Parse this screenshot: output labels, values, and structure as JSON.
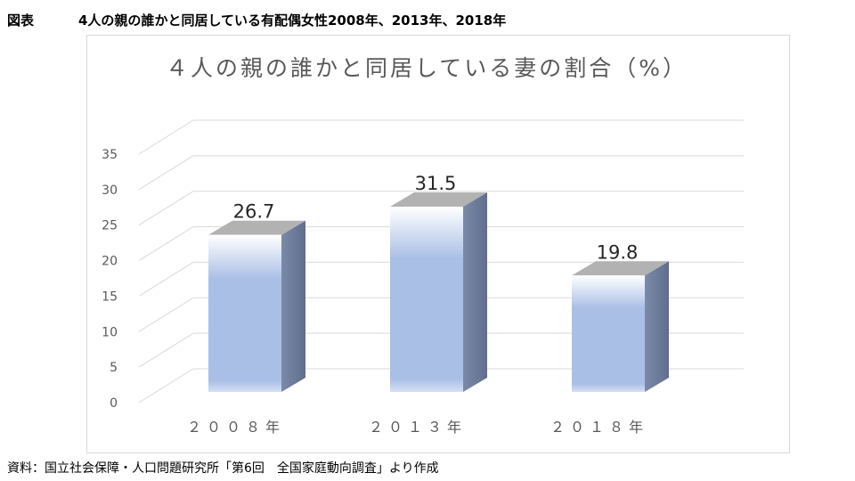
{
  "header": {
    "figure_label": "図表",
    "figure_title": "4人の親の誰かと同居している有配偶女性2008年、2013年、2018年"
  },
  "chart_data": {
    "type": "bar",
    "title": "４人の親の誰かと同居している妻の割合（%）",
    "categories": [
      "２００８年",
      "２０１３年",
      "２０１８年"
    ],
    "values": [
      26.7,
      31.5,
      19.8
    ],
    "value_labels": [
      "26.7",
      "31.5",
      "19.8"
    ],
    "yticks": [
      "0",
      "5",
      "10",
      "15",
      "20",
      "25",
      "30",
      "35"
    ],
    "ylim": [
      0,
      35
    ],
    "grid": true,
    "xlabel": "",
    "ylabel": "",
    "colors": {
      "bar_light": "#ffffff",
      "bar_main": "#aabfe6",
      "bar_side": "#6b7b9a",
      "bar_top": "#b2b2b2",
      "grid": "#d9d9d9",
      "text": "#595959"
    }
  },
  "source": {
    "text": "資料：国立社会保障・人口問題研究所「第6回　全国家庭動向調査」より作成"
  }
}
